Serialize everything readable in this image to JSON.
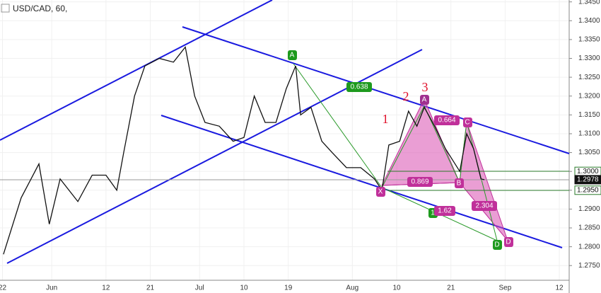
{
  "chart_data": {
    "type": "line",
    "title": "USD/CAD, 60,",
    "x": [
      142.2,
      145.8,
      149.4,
      151.5,
      153.7,
      157.3,
      160.2,
      163.0,
      165.2,
      166.6,
      168.8,
      170.9,
      173.8,
      176.7,
      179.1,
      181.0,
      183.1,
      186.0,
      188.8,
      191.0,
      193.1,
      195.3,
      197.5,
      199.6,
      201.5,
      202.5,
      204.6,
      206.8,
      208.9,
      211.8,
      214.7,
      217.5,
      219.0,
      220.4,
      222.6,
      224.4,
      226.1,
      227.6,
      229.7,
      231.9,
      234.8,
      236.2,
      237.6,
      239.1,
      239.8
    ],
    "series": [
      {
        "name": "USD/CAD",
        "color": "#111111",
        "values": [
          1.278,
          1.293,
          1.302,
          1.286,
          1.298,
          1.292,
          1.299,
          1.299,
          1.295,
          1.305,
          1.32,
          1.328,
          1.33,
          1.329,
          1.333,
          1.32,
          1.313,
          1.312,
          1.308,
          1.309,
          1.32,
          1.313,
          1.313,
          1.322,
          1.328,
          1.315,
          1.317,
          1.308,
          1.305,
          1.301,
          1.301,
          1.298,
          1.295,
          1.307,
          1.308,
          1.316,
          1.312,
          1.317,
          1.312,
          1.306,
          1.3,
          1.31,
          1.306,
          1.298,
          1.2978
        ]
      }
    ],
    "xlim": [
      141.5,
      257
    ],
    "xticks": [
      {
        "value": 142,
        "label": "22"
      },
      {
        "value": 152,
        "label": "Jun"
      },
      {
        "value": 163,
        "label": "12"
      },
      {
        "value": 172,
        "label": "21"
      },
      {
        "value": 182,
        "label": "Jul"
      },
      {
        "value": 191,
        "label": "10"
      },
      {
        "value": 200,
        "label": "19"
      },
      {
        "value": 213,
        "label": "Aug"
      },
      {
        "value": 222,
        "label": "10"
      },
      {
        "value": 233,
        "label": "21"
      },
      {
        "value": 244,
        "label": "Sep"
      },
      {
        "value": 255,
        "label": "12"
      }
    ],
    "ylim": [
      1.2711,
      1.3455
    ],
    "yticks": [
      {
        "value": 1.275,
        "label": "1.2750"
      },
      {
        "value": 1.28,
        "label": "1.2800"
      },
      {
        "value": 1.285,
        "label": "1.2850"
      },
      {
        "value": 1.29,
        "label": "1.2900"
      },
      {
        "value": 1.295,
        "label": "1.2950"
      },
      {
        "value": 1.3,
        "label": "1.3000"
      },
      {
        "value": 1.305,
        "label": "1.3050"
      },
      {
        "value": 1.31,
        "label": "1.3100"
      },
      {
        "value": 1.315,
        "label": "1.3150"
      },
      {
        "value": 1.32,
        "label": "1.3200"
      },
      {
        "value": 1.325,
        "label": "1.3250"
      },
      {
        "value": 1.33,
        "label": "1.3300"
      },
      {
        "value": 1.335,
        "label": "1.3350"
      },
      {
        "value": 1.34,
        "label": "1.3400"
      },
      {
        "value": 1.345,
        "label": "1.3450"
      }
    ],
    "price_labels": [
      {
        "value": 1.3,
        "label": "1.3000"
      },
      {
        "value": 1.2978,
        "label": "1.2978"
      },
      {
        "value": 1.295,
        "label": "1.2950"
      }
    ],
    "annotations": [
      "A",
      "0.638",
      "A",
      "0.664",
      "C",
      "0.869",
      "B",
      "X",
      "1",
      "1.62",
      "2.304",
      "D",
      "D",
      "1",
      "2",
      "3"
    ]
  }
}
